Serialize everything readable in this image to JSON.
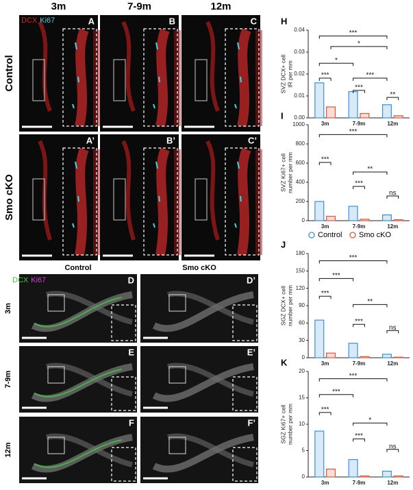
{
  "figure": {
    "top": {
      "column_headers": [
        "3m",
        "7-9m",
        "12m"
      ],
      "row_labels": [
        "Control",
        "Smo cKO"
      ],
      "stain_labels": [
        "DCX",
        "Ki67"
      ],
      "panel_letters": [
        "A",
        "B",
        "C",
        "A’",
        "B’",
        "C’"
      ]
    },
    "bottom": {
      "column_headers": [
        "Control",
        "Smo cKO"
      ],
      "row_labels": [
        "3m",
        "7-9m",
        "12m"
      ],
      "stain_labels": [
        "DCX",
        "Ki67"
      ],
      "panel_letters": [
        "D",
        "D’",
        "E",
        "E’",
        "F",
        "F’"
      ]
    }
  },
  "chart_data": [
    {
      "type": "bar",
      "panel": "H",
      "ylabel": [
        "SVZ DCX+ cell",
        "IR per mm"
      ],
      "categories": [
        "3m",
        "7-9m",
        "12m"
      ],
      "series": [
        {
          "name": "Control",
          "color": "#3a8fd6",
          "values": [
            0.016,
            0.012,
            0.006
          ]
        },
        {
          "name": "Smo cKO",
          "color": "#e8533a",
          "values": [
            0.005,
            0.002,
            0.001
          ]
        }
      ],
      "ylim": [
        0,
        0.04
      ],
      "yticks": [
        {
          "value": 0,
          "label": "0.00"
        },
        0.01,
        0.02,
        0.03,
        0.04
      ],
      "annotations": [
        "***",
        "*",
        "*",
        "***",
        "***",
        "***",
        "**"
      ]
    },
    {
      "type": "bar",
      "panel": "I",
      "ylabel": [
        "SVZ Ki67+ cell",
        "number per mm"
      ],
      "categories": [
        "3m",
        "7-9m",
        "12m"
      ],
      "series": [
        {
          "name": "Control",
          "color": "#3a8fd6",
          "values": [
            200,
            150,
            60
          ]
        },
        {
          "name": "Smo cKO",
          "color": "#e8533a",
          "values": [
            45,
            15,
            10
          ]
        }
      ],
      "ylim": [
        0,
        1000
      ],
      "yticks": [
        0,
        200,
        400,
        600,
        800,
        1000
      ],
      "annotations": [
        "***",
        "***",
        "**",
        "***",
        "ns"
      ]
    },
    {
      "type": "bar",
      "panel": "J",
      "ylabel": [
        "SGZ DCX+ cell",
        "number per mm"
      ],
      "categories": [
        "3m",
        "7-9m",
        "12m"
      ],
      "series": [
        {
          "name": "Control",
          "color": "#3a8fd6",
          "values": [
            65,
            25,
            6
          ]
        },
        {
          "name": "Smo cKO",
          "color": "#e8533a",
          "values": [
            8,
            2,
            1
          ]
        }
      ],
      "ylim": [
        0,
        180
      ],
      "yticks": [
        0,
        30,
        60,
        90,
        120,
        150,
        180
      ],
      "annotations": [
        "***",
        "***",
        "***",
        "**",
        "***",
        "ns"
      ]
    },
    {
      "type": "bar",
      "panel": "K",
      "ylabel": [
        "SGZ Ki67+ cell",
        "number per mm"
      ],
      "categories": [
        "3m",
        "7-9m",
        "12m"
      ],
      "series": [
        {
          "name": "Control",
          "color": "#3a8fd6",
          "values": [
            8.7,
            3.3,
            1.1
          ]
        },
        {
          "name": "Smo cKO",
          "color": "#e8533a",
          "values": [
            1.5,
            0.2,
            0.2
          ]
        }
      ],
      "ylim": [
        0,
        20
      ],
      "yticks": [
        0,
        5,
        10,
        15,
        20
      ],
      "annotations": [
        "***",
        "***",
        "***",
        "*",
        "***",
        "ns"
      ]
    }
  ]
}
